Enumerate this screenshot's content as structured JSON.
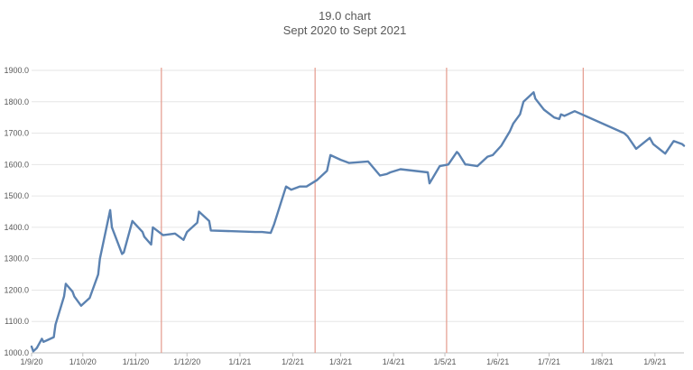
{
  "chart_data": {
    "type": "line",
    "title": "19.0 chart",
    "subtitle": "Sept 2020 to Sept 2021",
    "xlabel": "",
    "ylabel": "",
    "ylim": [
      1000,
      1900
    ],
    "y_ticks": [
      "1000.0",
      "1100.0",
      "1200.0",
      "1300.0",
      "1400.0",
      "1500.0",
      "1600.0",
      "1700.0",
      "1800.0",
      "1900.0"
    ],
    "x_ticks": [
      "1/9/20",
      "1/10/20",
      "1/11/20",
      "1/12/20",
      "1/1/21",
      "1/2/21",
      "1/3/21",
      "1/4/21",
      "1/5/21",
      "1/6/21",
      "1/7/21",
      "1/8/21",
      "1/9/21"
    ],
    "grid": "horizontal",
    "legend": "none",
    "line_color": "#5b82b1",
    "marker_line_color": "#e49a8c",
    "vertical_markers": [
      {
        "x": "2020-11-16"
      },
      {
        "x": "2021-02-14"
      },
      {
        "x": "2021-05-02"
      },
      {
        "x": "2021-07-21"
      }
    ],
    "series": [
      {
        "x": [
          "2020-09-01",
          "2020-09-02",
          "2020-09-04",
          "2020-09-07",
          "2020-09-08",
          "2020-09-10",
          "2020-09-14",
          "2020-09-15",
          "2020-09-20",
          "2020-09-21",
          "2020-09-25",
          "2020-09-26",
          "2020-09-30",
          "2020-10-05",
          "2020-10-10",
          "2020-10-11",
          "2020-10-17",
          "2020-10-18",
          "2020-10-24",
          "2020-10-25",
          "2020-10-30",
          "2020-11-05",
          "2020-11-06",
          "2020-11-10",
          "2020-11-11",
          "2020-11-17",
          "2020-11-24",
          "2020-11-29",
          "2020-12-01",
          "2020-12-07",
          "2020-12-08",
          "2020-12-14",
          "2020-12-15",
          "2021-01-10",
          "2021-01-14",
          "2021-01-19",
          "2021-01-21",
          "2021-01-28",
          "2021-01-31",
          "2021-02-05",
          "2021-02-09",
          "2021-02-15",
          "2021-02-21",
          "2021-02-23",
          "2021-03-01",
          "2021-03-06",
          "2021-03-17",
          "2021-03-24",
          "2021-03-28",
          "2021-03-30",
          "2021-04-05",
          "2021-04-21",
          "2021-04-22",
          "2021-04-28",
          "2021-05-03",
          "2021-05-08",
          "2021-05-09",
          "2021-05-13",
          "2021-05-14",
          "2021-05-20",
          "2021-05-26",
          "2021-05-29",
          "2021-06-03",
          "2021-06-08",
          "2021-06-10",
          "2021-06-14",
          "2021-06-16",
          "2021-06-22",
          "2021-06-23",
          "2021-06-28",
          "2021-07-04",
          "2021-07-07",
          "2021-07-08",
          "2021-07-10",
          "2021-07-12",
          "2021-07-16",
          "2021-08-14",
          "2021-08-16",
          "2021-08-21",
          "2021-08-29",
          "2021-08-31",
          "2021-09-07",
          "2021-09-12",
          "2021-09-17",
          "2021-09-18"
        ],
        "y": [
          1020,
          1005,
          1015,
          1045,
          1035,
          1040,
          1050,
          1090,
          1180,
          1220,
          1195,
          1180,
          1150,
          1175,
          1250,
          1300,
          1455,
          1400,
          1315,
          1320,
          1420,
          1385,
          1370,
          1345,
          1400,
          1375,
          1380,
          1360,
          1385,
          1415,
          1450,
          1420,
          1390,
          1385,
          1385,
          1382,
          1410,
          1530,
          1520,
          1530,
          1530,
          1550,
          1580,
          1630,
          1615,
          1605,
          1610,
          1565,
          1570,
          1575,
          1585,
          1575,
          1540,
          1595,
          1600,
          1640,
          1635,
          1600,
          1600,
          1595,
          1625,
          1630,
          1660,
          1705,
          1730,
          1760,
          1800,
          1830,
          1810,
          1775,
          1750,
          1745,
          1760,
          1755,
          1760,
          1770,
          1700,
          1690,
          1650,
          1685,
          1665,
          1635,
          1675,
          1665,
          1660
        ]
      }
    ]
  }
}
